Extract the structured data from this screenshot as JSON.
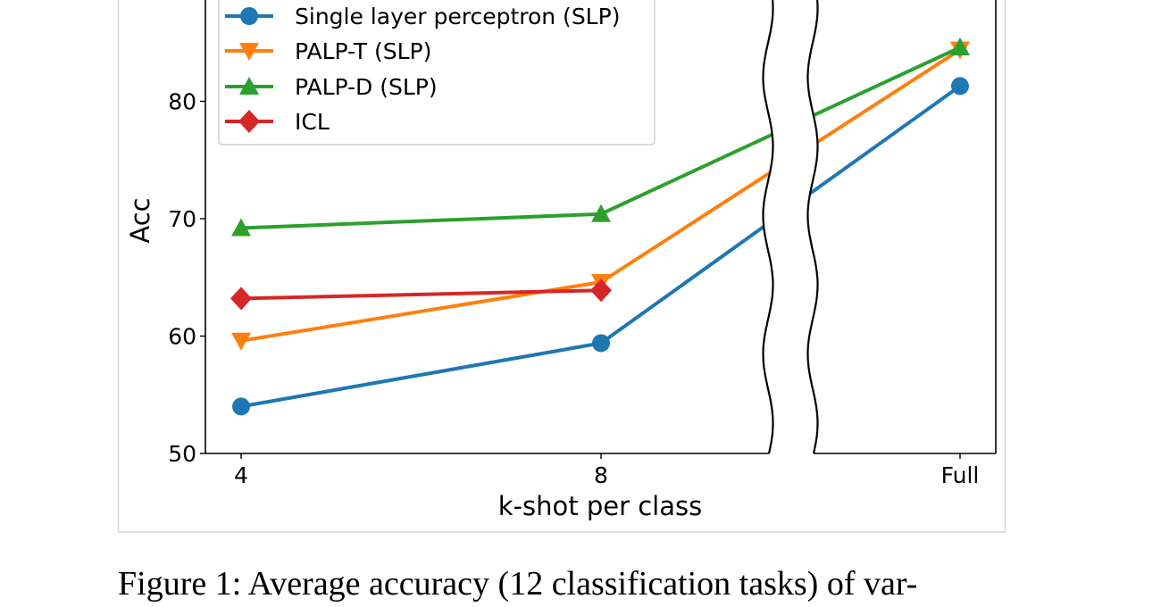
{
  "chart_data": {
    "type": "line",
    "xlabel": "k-shot per class",
    "ylabel": "Acc",
    "categories": [
      "4",
      "8",
      "Full"
    ],
    "y_ticks": [
      50,
      60,
      70,
      80
    ],
    "ylim": [
      50,
      88.6
    ],
    "axis_break": "between 8 and Full",
    "grid": false,
    "legend_position": "top-left",
    "series": [
      {
        "name": "Single layer perceptron (SLP)",
        "color": "#1f77b4",
        "marker": "circle",
        "values": [
          54.0,
          59.4,
          81.3
        ]
      },
      {
        "name": "PALP-T (SLP)",
        "color": "#ff7f0e",
        "marker": "triangle-down",
        "values": [
          59.6,
          64.6,
          84.4
        ]
      },
      {
        "name": "PALP-D (SLP)",
        "color": "#2ca02c",
        "marker": "triangle-up",
        "values": [
          69.2,
          70.4,
          84.6
        ]
      },
      {
        "name": "ICL",
        "color": "#d62728",
        "marker": "diamond",
        "values": [
          63.2,
          63.9,
          null
        ]
      }
    ]
  },
  "caption": "Figure 1: Average accuracy (12 classification tasks) of var-"
}
